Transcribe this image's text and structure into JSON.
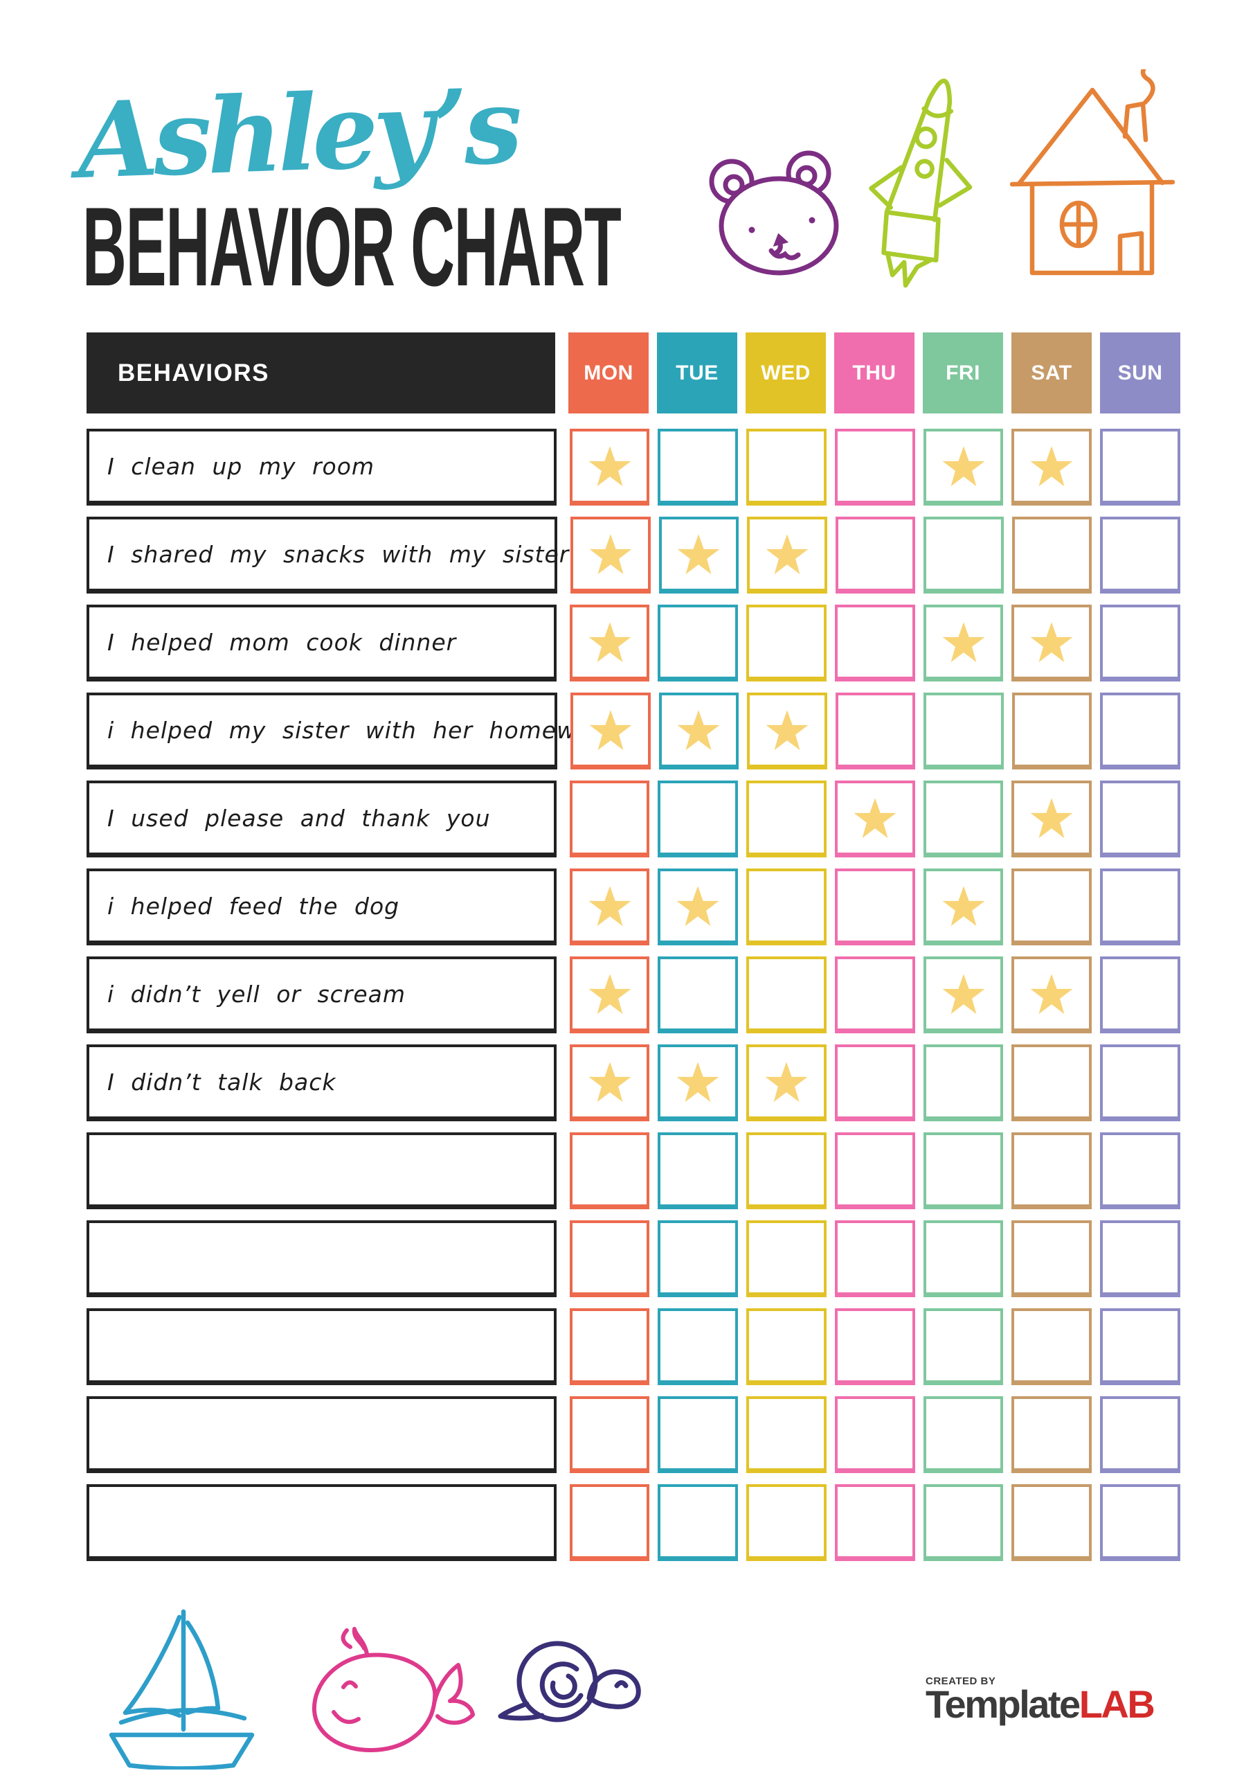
{
  "header": {
    "script_title": "Ashley’s",
    "main_title": "BEHAVIOR CHART",
    "script_color": "#3AAEC3",
    "title_color": "#262626"
  },
  "doodles": {
    "bear_color": "#7C2E82",
    "rocket_color": "#A9CB2C",
    "house_color": "#E58238",
    "boat_color": "#2D9EC9",
    "whale_color": "#DE3A8C",
    "snail_color": "#3A3077"
  },
  "table": {
    "behaviors_header": "BEHAVIORS",
    "header_bg": "#262626",
    "star_color": "#F8D477",
    "days": [
      {
        "label": "MON",
        "color": "#ED6A4D"
      },
      {
        "label": "TUE",
        "color": "#2CA4B8"
      },
      {
        "label": "WED",
        "color": "#E2C327"
      },
      {
        "label": "THU",
        "color": "#F06EAD"
      },
      {
        "label": "FRI",
        "color": "#7FC79D"
      },
      {
        "label": "SAT",
        "color": "#C69B68"
      },
      {
        "label": "SUN",
        "color": "#8D8CC6"
      }
    ],
    "rows": [
      {
        "label": "I clean up my room",
        "stars": [
          1,
          0,
          0,
          0,
          1,
          1,
          0
        ]
      },
      {
        "label": "I shared my snacks with my sister",
        "stars": [
          1,
          1,
          1,
          0,
          0,
          0,
          0
        ]
      },
      {
        "label": "I helped mom cook dinner",
        "stars": [
          1,
          0,
          0,
          0,
          1,
          1,
          0
        ]
      },
      {
        "label": "i helped my sister with her homework",
        "stars": [
          1,
          1,
          1,
          0,
          0,
          0,
          0
        ]
      },
      {
        "label": "I used please and thank you",
        "stars": [
          0,
          0,
          0,
          1,
          0,
          1,
          0
        ]
      },
      {
        "label": "i helped feed the dog",
        "stars": [
          1,
          1,
          0,
          0,
          1,
          0,
          0
        ]
      },
      {
        "label": "i didn’t yell or scream",
        "stars": [
          1,
          0,
          0,
          0,
          1,
          1,
          0
        ]
      },
      {
        "label": "I didn’t talk back",
        "stars": [
          1,
          1,
          1,
          0,
          0,
          0,
          0
        ]
      },
      {
        "label": "",
        "stars": [
          0,
          0,
          0,
          0,
          0,
          0,
          0
        ]
      },
      {
        "label": "",
        "stars": [
          0,
          0,
          0,
          0,
          0,
          0,
          0
        ]
      },
      {
        "label": "",
        "stars": [
          0,
          0,
          0,
          0,
          0,
          0,
          0
        ]
      },
      {
        "label": "",
        "stars": [
          0,
          0,
          0,
          0,
          0,
          0,
          0
        ]
      },
      {
        "label": "",
        "stars": [
          0,
          0,
          0,
          0,
          0,
          0,
          0
        ]
      }
    ]
  },
  "footer": {
    "created_by": "CREATED BY",
    "brand_name": "Template",
    "brand_suffix": "LAB",
    "brand_suffix_color": "#D42B2B"
  }
}
